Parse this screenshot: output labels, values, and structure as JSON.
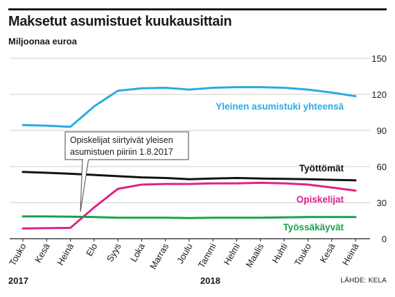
{
  "title": "Maksetut asumistuet kuukausittain",
  "subtitle": "Miljoonaa euroa",
  "source": "LÄHDE: KELA",
  "years": [
    "2017",
    "2018"
  ],
  "annotation": [
    "Opiskelijat siirtyivät yleisen",
    "asumistuen piiriin 1.8.2017"
  ],
  "chart_data": {
    "type": "line",
    "title": "Maksetut asumistuet kuukausittain",
    "ylabel": "Miljoonaa euroa",
    "categories": [
      "Touko",
      "Kesä",
      "Heinä",
      "Elo",
      "Syys",
      "Loka",
      "Marras",
      "Joulu",
      "Tammi",
      "Helmi",
      "Maalis",
      "Huhti",
      "Touko",
      "Kesä",
      "Heinä"
    ],
    "ylim": [
      0,
      150
    ],
    "yticks": [
      0,
      30,
      60,
      90,
      120,
      150
    ],
    "grid": true,
    "series": [
      {
        "name": "Yleinen asumistuki yhteensä",
        "color": "#29abe2",
        "values": [
          94.5,
          94,
          93,
          110,
          123,
          125,
          125.5,
          124,
          125.5,
          126,
          126,
          125.5,
          124,
          121.5,
          118.5
        ]
      },
      {
        "name": "Työttömät",
        "color": "#111111",
        "values": [
          55.5,
          54.8,
          54,
          53,
          52,
          51,
          50.5,
          49.5,
          50,
          50.5,
          50,
          49.8,
          49.5,
          49,
          48.5
        ]
      },
      {
        "name": "Opiskelijat",
        "color": "#e0218a",
        "values": [
          8.5,
          8.8,
          9,
          26,
          41.5,
          45,
          45.5,
          45.5,
          46,
          46,
          46.5,
          46,
          45,
          42.5,
          40
        ]
      },
      {
        "name": "Työssäkäyvät",
        "color": "#19a14b",
        "values": [
          18.5,
          18.5,
          18.3,
          18,
          17.5,
          17.5,
          17.5,
          17.2,
          17.5,
          17.5,
          17.5,
          17.7,
          18,
          18,
          18
        ]
      }
    ]
  }
}
